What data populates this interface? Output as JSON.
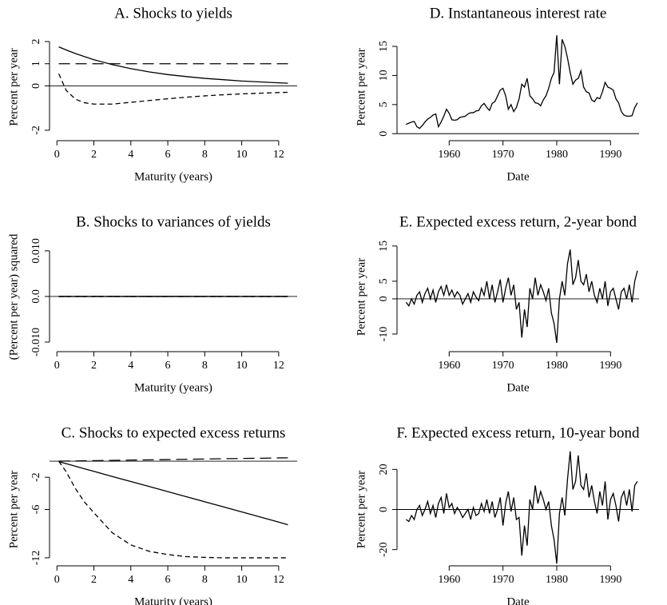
{
  "chart_data": [
    {
      "type": "line",
      "title": "A.  Shocks to yields",
      "xlabel": "Maturity (years)",
      "ylabel": "Percent per year",
      "x": [
        0.1,
        0.5,
        1,
        1.5,
        2,
        3,
        4,
        5,
        6,
        7,
        8,
        9,
        10,
        11,
        12,
        12.5
      ],
      "series": [
        {
          "color": "#000000",
          "dash": "solid",
          "values": [
            1.76,
            1.62,
            1.46,
            1.32,
            1.18,
            0.96,
            0.78,
            0.63,
            0.51,
            0.42,
            0.34,
            0.28,
            0.22,
            0.18,
            0.14,
            0.12
          ]
        },
        {
          "color": "#000000",
          "dash": "long-dash",
          "values": [
            1,
            1,
            1,
            1,
            1,
            1,
            1,
            1,
            1,
            1,
            1,
            1,
            1,
            1,
            1,
            1
          ]
        },
        {
          "color": "#000000",
          "dash": "short-dash",
          "values": [
            0.55,
            -0.2,
            -0.6,
            -0.76,
            -0.82,
            -0.82,
            -0.74,
            -0.66,
            -0.58,
            -0.51,
            -0.45,
            -0.4,
            -0.36,
            -0.33,
            -0.3,
            -0.29
          ]
        }
      ],
      "xlim": [
        -0.4,
        13
      ],
      "xticks": [
        0,
        2,
        4,
        6,
        8,
        10,
        12
      ],
      "ylim": [
        -2.47,
        2.36
      ],
      "yticks": [
        -2,
        0,
        1,
        2
      ],
      "hline": 0
    },
    {
      "type": "line",
      "title": "B.  Shocks to variances of yields",
      "xlabel": "Maturity (years)",
      "ylabel": "(Percent per year) squared",
      "x": [
        0.1,
        0.5,
        1,
        1.5,
        2,
        3,
        4,
        5,
        6,
        7,
        8,
        9,
        10,
        11,
        12,
        12.5
      ],
      "series": [
        {
          "color": "#000000",
          "dash": "solid",
          "values": [
            0,
            0,
            0,
            0,
            0,
            0,
            0,
            0,
            0,
            0,
            0,
            0,
            0,
            0,
            0,
            0
          ]
        },
        {
          "color": "#000000",
          "dash": "long-dash",
          "values": [
            0,
            0,
            0,
            0,
            0,
            0,
            0,
            0,
            0,
            0,
            0,
            0,
            0,
            0,
            0,
            0
          ]
        },
        {
          "color": "#000000",
          "dash": "short-dash",
          "values": [
            0,
            0,
            0,
            0,
            0,
            0,
            0,
            0,
            0,
            0,
            0,
            0,
            0,
            0,
            0,
            0
          ]
        }
      ],
      "xlim": [
        -0.4,
        13
      ],
      "xticks": [
        0,
        2,
        4,
        6,
        8,
        10,
        12
      ],
      "ylim": [
        -0.0121,
        0.0119
      ],
      "yticks": [
        {
          "value": -0.01,
          "label": "-0.010"
        },
        {
          "value": 0,
          "label": "0.0"
        },
        {
          "value": 0.01,
          "label": "0.010"
        }
      ],
      "hline": 0
    },
    {
      "type": "line",
      "title": "C.  Shocks to expected excess returns",
      "xlabel": "Maturity (years)",
      "ylabel": "Percent per year",
      "x": [
        0.1,
        0.5,
        1,
        1.5,
        2,
        3,
        4,
        5,
        6,
        7,
        8,
        9,
        10,
        11,
        12,
        12.5
      ],
      "series": [
        {
          "color": "#000000",
          "dash": "solid",
          "values": [
            -0.06,
            -0.3,
            -0.63,
            -0.95,
            -1.26,
            -1.9,
            -2.52,
            -3.15,
            -3.78,
            -4.41,
            -5.04,
            -5.67,
            -6.3,
            -6.93,
            -7.56,
            -7.9
          ]
        },
        {
          "color": "#000000",
          "dash": "long-dash",
          "values": [
            0,
            0.02,
            0.03,
            0.05,
            0.07,
            0.1,
            0.14,
            0.17,
            0.2,
            0.24,
            0.27,
            0.31,
            0.34,
            0.37,
            0.41,
            0.42
          ]
        },
        {
          "color": "#000000",
          "dash": "short-dash",
          "values": [
            0,
            -1.3,
            -3.4,
            -5.1,
            -6.4,
            -8.9,
            -10.4,
            -11.2,
            -11.6,
            -11.85,
            -11.95,
            -12,
            -12,
            -12,
            -12,
            -12
          ]
        }
      ],
      "xlim": [
        -0.4,
        13
      ],
      "xticks": [
        0,
        2,
        4,
        6,
        8,
        10,
        12
      ],
      "ylim": [
        -13,
        1
      ],
      "yticks": [
        -12,
        -6,
        -2
      ],
      "hline": 0
    },
    {
      "type": "line",
      "title": "D.  Instantaneous interest rate",
      "xlabel": "Date",
      "ylabel": "Percent per year",
      "x": [
        1952,
        1952.5,
        1953,
        1953.5,
        1954,
        1954.5,
        1955,
        1955.5,
        1956,
        1956.5,
        1957,
        1957.5,
        1958,
        1958.5,
        1959,
        1959.5,
        1960,
        1960.5,
        1961,
        1961.5,
        1962,
        1962.5,
        1963,
        1963.5,
        1964,
        1964.5,
        1965,
        1965.5,
        1966,
        1966.5,
        1967,
        1967.5,
        1968,
        1968.5,
        1969,
        1969.5,
        1970,
        1970.5,
        1971,
        1971.5,
        1972,
        1972.5,
        1973,
        1973.5,
        1974,
        1974.5,
        1975,
        1975.5,
        1976,
        1976.5,
        1977,
        1977.5,
        1978,
        1978.5,
        1979,
        1979.5,
        1980,
        1980.5,
        1981,
        1981.5,
        1982,
        1982.5,
        1983,
        1983.5,
        1984,
        1984.5,
        1985,
        1985.5,
        1986,
        1986.5,
        1987,
        1987.5,
        1988,
        1988.5,
        1989,
        1989.5,
        1990,
        1990.5,
        1991,
        1991.5,
        1992,
        1992.5,
        1993,
        1993.5,
        1994,
        1994.5,
        1995
      ],
      "series": [
        {
          "color": "#000000",
          "dash": "solid",
          "values": [
            1.6,
            1.8,
            2.0,
            2.1,
            1.2,
            0.9,
            1.4,
            2.0,
            2.5,
            2.8,
            3.2,
            3.4,
            1.2,
            2.0,
            3.0,
            4.2,
            3.5,
            2.4,
            2.3,
            2.4,
            2.8,
            2.9,
            3.0,
            3.4,
            3.6,
            3.6,
            3.9,
            4.0,
            4.8,
            5.2,
            4.5,
            4.0,
            5.2,
            5.5,
            6.5,
            7.5,
            7.8,
            6.5,
            4.2,
            5.0,
            3.8,
            4.5,
            6.0,
            8.5,
            8.0,
            9.5,
            6.5,
            6.0,
            5.3,
            5.2,
            4.8,
            5.8,
            6.5,
            7.8,
            9.5,
            10.5,
            16.9,
            8.5,
            16.2,
            15.0,
            13.0,
            10.5,
            8.5,
            9.2,
            9.5,
            10.8,
            8.0,
            7.2,
            7.0,
            5.8,
            5.5,
            6.2,
            6.0,
            7.2,
            8.8,
            8.0,
            7.8,
            7.5,
            6.0,
            5.3,
            3.8,
            3.2,
            3.0,
            3.0,
            3.1,
            4.5,
            5.3
          ]
        }
      ],
      "xlim": [
        1950.3,
        1995.3
      ],
      "xticks": [
        1960,
        1970,
        1980,
        1990
      ],
      "ylim": [
        -1.2,
        17.2
      ],
      "yticks": [
        0,
        5,
        10,
        15
      ],
      "hline": 0
    },
    {
      "type": "line",
      "title": "E.  Expected excess return, 2-year bond",
      "xlabel": "Date",
      "ylabel": "Percent per year",
      "x": [
        1952,
        1952.5,
        1953,
        1953.5,
        1954,
        1954.5,
        1955,
        1955.5,
        1956,
        1956.5,
        1957,
        1957.5,
        1958,
        1958.5,
        1959,
        1959.5,
        1960,
        1960.5,
        1961,
        1961.5,
        1962,
        1962.5,
        1963,
        1963.5,
        1964,
        1964.5,
        1965,
        1965.5,
        1966,
        1966.5,
        1967,
        1967.5,
        1968,
        1968.5,
        1969,
        1969.5,
        1970,
        1970.5,
        1971,
        1971.5,
        1972,
        1972.5,
        1973,
        1973.5,
        1974,
        1974.5,
        1975,
        1975.5,
        1976,
        1976.5,
        1977,
        1977.5,
        1978,
        1978.5,
        1979,
        1979.5,
        1980,
        1980.5,
        1981,
        1981.5,
        1982,
        1982.5,
        1983,
        1983.5,
        1984,
        1984.5,
        1985,
        1985.5,
        1986,
        1986.5,
        1987,
        1987.5,
        1988,
        1988.5,
        1989,
        1989.5,
        1990,
        1990.5,
        1991,
        1991.5,
        1992,
        1992.5,
        1993,
        1993.5,
        1994,
        1994.5,
        1995
      ],
      "series": [
        {
          "color": "#000000",
          "dash": "solid",
          "values": [
            -1,
            -2,
            0,
            -1.5,
            1,
            2,
            -1,
            1.5,
            3,
            0,
            2.5,
            -1,
            2,
            3.5,
            1,
            4,
            1,
            2.5,
            0.5,
            2,
            1,
            -1.5,
            0,
            1.5,
            -1,
            2,
            0.5,
            -0.5,
            3,
            1,
            5,
            0,
            4,
            -1,
            2,
            5.5,
            -1,
            3,
            6,
            1,
            4,
            -3,
            -1,
            -11,
            -3,
            -8,
            3,
            0,
            6,
            1,
            4,
            2,
            -0.5,
            3,
            -4,
            -7,
            -12.5,
            0,
            5,
            1,
            10,
            14,
            4,
            6,
            11,
            5,
            4,
            7,
            2,
            5,
            1,
            -1,
            3,
            0,
            5,
            -2,
            2,
            3,
            0,
            -3,
            2,
            3,
            0,
            4,
            -1,
            5,
            8
          ]
        }
      ],
      "xlim": [
        1950.3,
        1995.3
      ],
      "xticks": [
        1960,
        1970,
        1980,
        1990
      ],
      "ylim": [
        -15,
        16.1
      ],
      "yticks": [
        -10,
        0,
        5,
        15
      ],
      "hline": 0
    },
    {
      "type": "line",
      "title": "F.  Expected excess return, 10-year bond",
      "xlabel": "Date",
      "ylabel": "Percent per year",
      "x": [
        1952,
        1952.5,
        1953,
        1953.5,
        1954,
        1954.5,
        1955,
        1955.5,
        1956,
        1956.5,
        1957,
        1957.5,
        1958,
        1958.5,
        1959,
        1959.5,
        1960,
        1960.5,
        1961,
        1961.5,
        1962,
        1962.5,
        1963,
        1963.5,
        1964,
        1964.5,
        1965,
        1965.5,
        1966,
        1966.5,
        1967,
        1967.5,
        1968,
        1968.5,
        1969,
        1969.5,
        1970,
        1970.5,
        1971,
        1971.5,
        1972,
        1972.5,
        1973,
        1973.5,
        1974,
        1974.5,
        1975,
        1975.5,
        1976,
        1976.5,
        1977,
        1977.5,
        1978,
        1978.5,
        1979,
        1979.5,
        1980,
        1980.5,
        1981,
        1981.5,
        1982,
        1982.5,
        1983,
        1983.5,
        1984,
        1984.5,
        1985,
        1985.5,
        1986,
        1986.5,
        1987,
        1987.5,
        1988,
        1988.5,
        1989,
        1989.5,
        1990,
        1990.5,
        1991,
        1991.5,
        1992,
        1992.5,
        1993,
        1993.5,
        1994,
        1994.5,
        1995
      ],
      "series": [
        {
          "color": "#000000",
          "dash": "solid",
          "values": [
            -5,
            -6,
            -3,
            -5,
            0,
            2,
            -3,
            0,
            4,
            -2,
            2,
            -4,
            3,
            6,
            -2,
            8,
            1,
            3,
            -2,
            1,
            -1,
            -4,
            -2,
            0,
            -5,
            1,
            -3,
            -2,
            3,
            -1,
            5,
            -2,
            4,
            -4,
            0,
            6,
            -8,
            3,
            9,
            -1,
            6,
            -5,
            -4,
            -23,
            -8,
            -18,
            5,
            0,
            12,
            3,
            9,
            5,
            0,
            4,
            -8,
            -15,
            -27,
            -2,
            6,
            -3,
            15,
            29,
            10,
            14,
            27,
            12,
            10,
            18,
            6,
            12,
            4,
            -2,
            9,
            2,
            14,
            -5,
            5,
            8,
            2,
            -6,
            6,
            9,
            2,
            10,
            -1,
            12,
            14
          ]
        }
      ],
      "xlim": [
        1950.3,
        1995.3
      ],
      "xticks": [
        1960,
        1970,
        1980,
        1990
      ],
      "ylim": [
        -28.1,
        28.1
      ],
      "yticks": [
        -20,
        0,
        20
      ],
      "hline": 0
    }
  ]
}
